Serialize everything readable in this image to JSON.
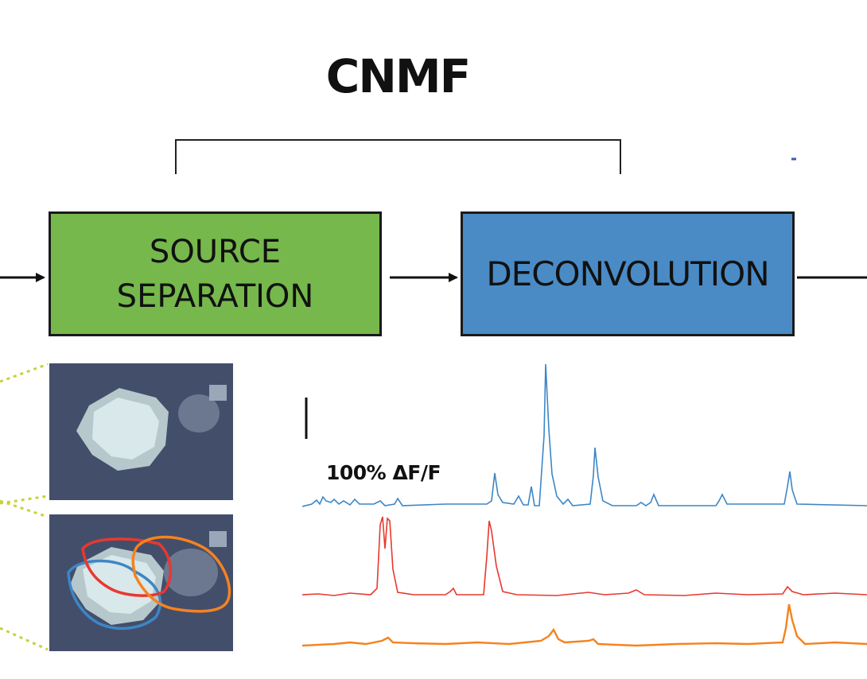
{
  "title": "CNMF",
  "boxes": {
    "source_separation": [
      "SOURCE",
      "SEPARATION"
    ],
    "deconvolution": "DECONVOLUTION"
  },
  "scale_bar_label": "100% ΔF/F",
  "colors": {
    "source_box": "#76b84c",
    "deconv_box": "#4a8bc6",
    "trace_blue": "#3d86c6",
    "trace_red": "#e8382f",
    "trace_orange": "#f58220",
    "dotted_guides": "#c8d23c"
  },
  "icons": [
    "arrow-right-icon"
  ]
}
